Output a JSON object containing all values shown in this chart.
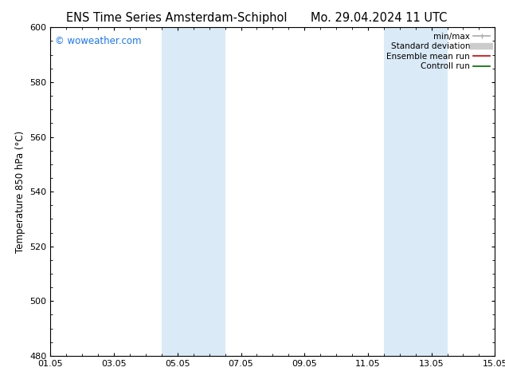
{
  "title_left": "ENS Time Series Amsterdam-Schiphol",
  "title_right": "Mo. 29.04.2024 11 UTC",
  "ylabel": "Temperature 850 hPa (°C)",
  "xtick_labels": [
    "01.05",
    "03.05",
    "05.05",
    "07.05",
    "09.05",
    "11.05",
    "13.05",
    "15.05"
  ],
  "xtick_positions": [
    0,
    2,
    4,
    6,
    8,
    10,
    12,
    14
  ],
  "ylim": [
    480,
    600
  ],
  "ytick_positions": [
    480,
    500,
    520,
    540,
    560,
    580,
    600
  ],
  "ytick_labels": [
    "480",
    "500",
    "520",
    "540",
    "560",
    "580",
    "600"
  ],
  "shaded_regions": [
    {
      "x_start": 3.5,
      "x_end": 5.5,
      "color": "#daeaf7"
    },
    {
      "x_start": 10.5,
      "x_end": 12.5,
      "color": "#daeaf7"
    }
  ],
  "legend_entries": [
    {
      "label": "min/max",
      "color": "#aaaaaa",
      "lw": 1.2
    },
    {
      "label": "Standard deviation",
      "color": "#cccccc",
      "lw": 6
    },
    {
      "label": "Ensemble mean run",
      "color": "#cc0000",
      "lw": 1.2
    },
    {
      "label": "Controll run",
      "color": "#006600",
      "lw": 1.2
    }
  ],
  "watermark_text": "© woweather.com",
  "watermark_color": "#1a75ff",
  "background_color": "#ffffff",
  "plot_bg_color": "#ffffff",
  "border_color": "#000000",
  "title_fontsize": 10.5,
  "axis_label_fontsize": 8.5,
  "tick_fontsize": 8,
  "legend_fontsize": 7.5,
  "watermark_fontsize": 8.5
}
